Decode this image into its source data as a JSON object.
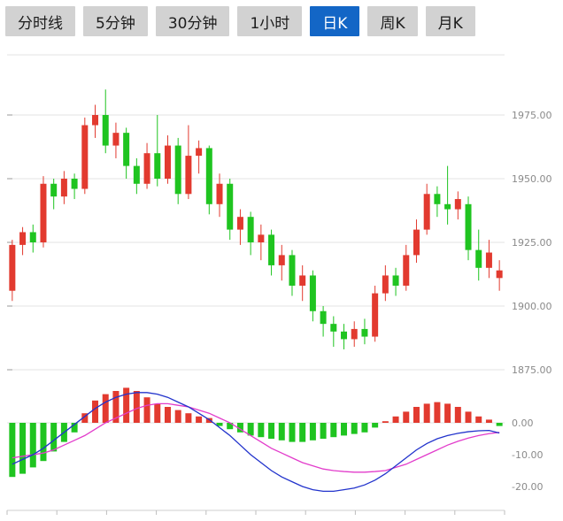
{
  "tabs": [
    {
      "label": "分时线",
      "active": false
    },
    {
      "label": "5分钟",
      "active": false
    },
    {
      "label": "30分钟",
      "active": false
    },
    {
      "label": "1小时",
      "active": false
    },
    {
      "label": "日K",
      "active": true
    },
    {
      "label": "周K",
      "active": false
    },
    {
      "label": "月K",
      "active": false
    }
  ],
  "colors": {
    "up": "#e23a2f",
    "down": "#1fc420",
    "dif_line": "#2233cc",
    "dea_line": "#e23ccb",
    "active_tab": "#1366c6",
    "tab_bg": "#d2d2d2",
    "grid": "#e3e3e3",
    "axis_text": "#8a8a8a"
  },
  "chart_data": {
    "type": "candlestick",
    "title": "",
    "legend": false,
    "grid": true,
    "y_axis_side": "right",
    "conventions": {
      "up_candle": "red",
      "down_candle": "green"
    },
    "price_panel": {
      "y_ticks": [
        1975,
        1950,
        1925,
        1900,
        1875
      ],
      "tick_format": "0.00",
      "candle_format": "[open, high, low, close]",
      "candles": [
        [
          1906,
          1926,
          1902,
          1924
        ],
        [
          1924,
          1931,
          1920,
          1929
        ],
        [
          1929,
          1932,
          1921,
          1925
        ],
        [
          1925,
          1951,
          1923,
          1948
        ],
        [
          1948,
          1950,
          1938,
          1943
        ],
        [
          1943,
          1953,
          1940,
          1950
        ],
        [
          1950,
          1952,
          1942,
          1946
        ],
        [
          1946,
          1974,
          1944,
          1971
        ],
        [
          1971,
          1979,
          1966,
          1975
        ],
        [
          1975,
          1985,
          1960,
          1963
        ],
        [
          1963,
          1972,
          1958,
          1968
        ],
        [
          1968,
          1970,
          1950,
          1955
        ],
        [
          1955,
          1958,
          1944,
          1948
        ],
        [
          1948,
          1964,
          1946,
          1960
        ],
        [
          1960,
          1975,
          1947,
          1950
        ],
        [
          1950,
          1967,
          1948,
          1963
        ],
        [
          1963,
          1966,
          1940,
          1944
        ],
        [
          1944,
          1971,
          1942,
          1959
        ],
        [
          1959,
          1965,
          1952,
          1962
        ],
        [
          1962,
          1963,
          1936,
          1940
        ],
        [
          1940,
          1952,
          1935,
          1948
        ],
        [
          1948,
          1950,
          1926,
          1930
        ],
        [
          1930,
          1938,
          1924,
          1935
        ],
        [
          1935,
          1937,
          1920,
          1925
        ],
        [
          1925,
          1932,
          1918,
          1928
        ],
        [
          1928,
          1930,
          1912,
          1916
        ],
        [
          1916,
          1924,
          1910,
          1920
        ],
        [
          1920,
          1922,
          1904,
          1908
        ],
        [
          1908,
          1916,
          1902,
          1912
        ],
        [
          1912,
          1914,
          1894,
          1898
        ],
        [
          1898,
          1900,
          1888,
          1893
        ],
        [
          1893,
          1896,
          1884,
          1890
        ],
        [
          1890,
          1893,
          1883,
          1887
        ],
        [
          1887,
          1894,
          1884,
          1891
        ],
        [
          1891,
          1895,
          1885,
          1888
        ],
        [
          1888,
          1908,
          1886,
          1905
        ],
        [
          1905,
          1916,
          1902,
          1912
        ],
        [
          1912,
          1915,
          1904,
          1908
        ],
        [
          1908,
          1924,
          1906,
          1920
        ],
        [
          1920,
          1934,
          1917,
          1930
        ],
        [
          1930,
          1948,
          1928,
          1944
        ],
        [
          1944,
          1947,
          1935,
          1940
        ],
        [
          1940,
          1955,
          1932,
          1938
        ],
        [
          1938,
          1945,
          1934,
          1942
        ],
        [
          1940,
          1943,
          1918,
          1922
        ],
        [
          1922,
          1930,
          1910,
          1915
        ],
        [
          1915,
          1926,
          1911,
          1921
        ],
        [
          1911,
          1918,
          1906,
          1914
        ]
      ]
    },
    "macd_panel": {
      "y_ticks": [
        0,
        -10,
        -20
      ],
      "tick_format": "0.00",
      "histogram": [
        -17,
        -16,
        -14,
        -12,
        -9,
        -6,
        -3,
        3,
        7,
        9,
        10,
        11,
        10,
        8,
        6,
        5,
        4,
        3,
        2,
        1.5,
        -1,
        -2,
        -3,
        -4,
        -4.5,
        -5,
        -5.5,
        -6,
        -6,
        -5.5,
        -5,
        -4.5,
        -4,
        -3.5,
        -3,
        -1.5,
        0.5,
        2,
        3.5,
        5,
        6,
        6.5,
        6,
        5,
        3.5,
        2,
        1,
        -1
      ],
      "dif": [
        -13,
        -11.5,
        -10,
        -8,
        -5.5,
        -3,
        -0.5,
        2,
        4.5,
        6.5,
        8,
        9,
        9.5,
        9.5,
        9,
        8,
        6.5,
        5,
        3,
        1,
        -1.5,
        -4,
        -7,
        -10,
        -12.5,
        -15,
        -17,
        -18.5,
        -20,
        -21,
        -21.5,
        -21.5,
        -21,
        -20.5,
        -19.5,
        -18,
        -16,
        -13.5,
        -11,
        -8.5,
        -6.5,
        -5,
        -4,
        -3.3,
        -2.8,
        -2.5,
        -2.4,
        -3.2
      ],
      "dea": [
        -11,
        -10.5,
        -10,
        -9.5,
        -8.5,
        -7,
        -5.5,
        -4,
        -2,
        0,
        1.5,
        3,
        4.5,
        5.5,
        6,
        6,
        5.5,
        5,
        4,
        3,
        1.5,
        0,
        -2,
        -4,
        -6,
        -8,
        -9.5,
        -11,
        -12.5,
        -13.5,
        -14.5,
        -15,
        -15.3,
        -15.5,
        -15.5,
        -15.3,
        -15,
        -14,
        -13,
        -11.5,
        -10,
        -8.5,
        -7,
        -5.8,
        -4.8,
        -4,
        -3.4,
        -3
      ]
    }
  }
}
